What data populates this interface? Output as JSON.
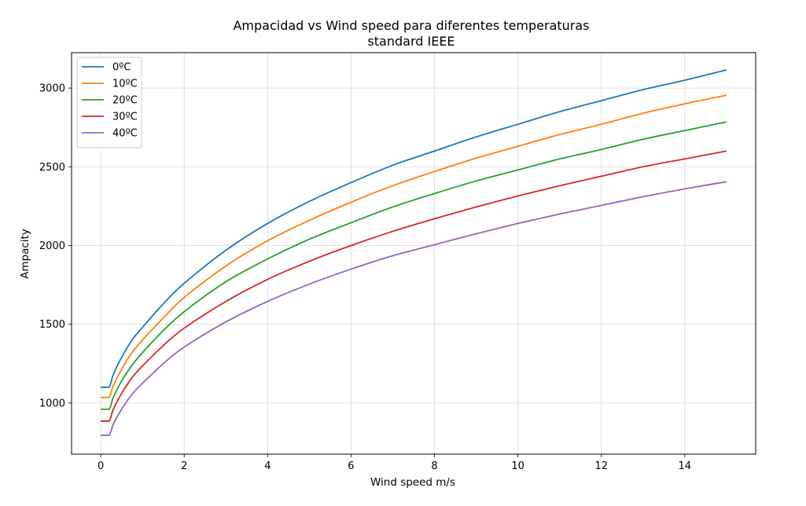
{
  "chart_data": {
    "type": "line",
    "title": "Ampacidad vs Wind speed para diferentes temperaturas",
    "subtitle": "standard IEEE",
    "xlabel": "Wind speed m/s",
    "ylabel": "Ampacity",
    "xlim": [
      -0.7,
      15.7
    ],
    "ylim": [
      675,
      3225
    ],
    "xticks": [
      0,
      2,
      4,
      6,
      8,
      10,
      12,
      14
    ],
    "yticks": [
      1000,
      1500,
      2000,
      2500,
      3000
    ],
    "grid": true,
    "legend_position": "top-left",
    "x": [
      0,
      0.2,
      0.3,
      0.5,
      0.75,
      1,
      1.5,
      2,
      3,
      4,
      5,
      6,
      7,
      8,
      9,
      10,
      11,
      12,
      13,
      14,
      15
    ],
    "series": [
      {
        "name": "0ºC",
        "color": "#1f77b4",
        "values": [
          1100,
          1100,
          1180,
          1290,
          1400,
          1480,
          1630,
          1760,
          1970,
          2140,
          2280,
          2400,
          2510,
          2600,
          2690,
          2770,
          2850,
          2920,
          2990,
          3050,
          3115
        ]
      },
      {
        "name": "10ºC",
        "color": "#ff7f0e",
        "values": [
          1035,
          1035,
          1110,
          1215,
          1320,
          1400,
          1540,
          1670,
          1870,
          2030,
          2160,
          2275,
          2380,
          2470,
          2555,
          2630,
          2705,
          2770,
          2840,
          2900,
          2955
        ]
      },
      {
        "name": "20ºC",
        "color": "#2ca02c",
        "values": [
          960,
          960,
          1035,
          1140,
          1240,
          1320,
          1460,
          1580,
          1770,
          1915,
          2040,
          2145,
          2245,
          2330,
          2410,
          2480,
          2550,
          2610,
          2675,
          2730,
          2785
        ]
      },
      {
        "name": "30ºC",
        "color": "#d62728",
        "values": [
          885,
          885,
          960,
          1060,
          1160,
          1235,
          1365,
          1475,
          1645,
          1785,
          1900,
          2000,
          2090,
          2170,
          2245,
          2315,
          2380,
          2440,
          2500,
          2550,
          2600
        ]
      },
      {
        "name": "40ºC",
        "color": "#9467bd",
        "values": [
          795,
          795,
          865,
          960,
          1055,
          1125,
          1250,
          1355,
          1515,
          1645,
          1755,
          1850,
          1935,
          2005,
          2075,
          2140,
          2200,
          2255,
          2310,
          2360,
          2405
        ]
      }
    ]
  }
}
